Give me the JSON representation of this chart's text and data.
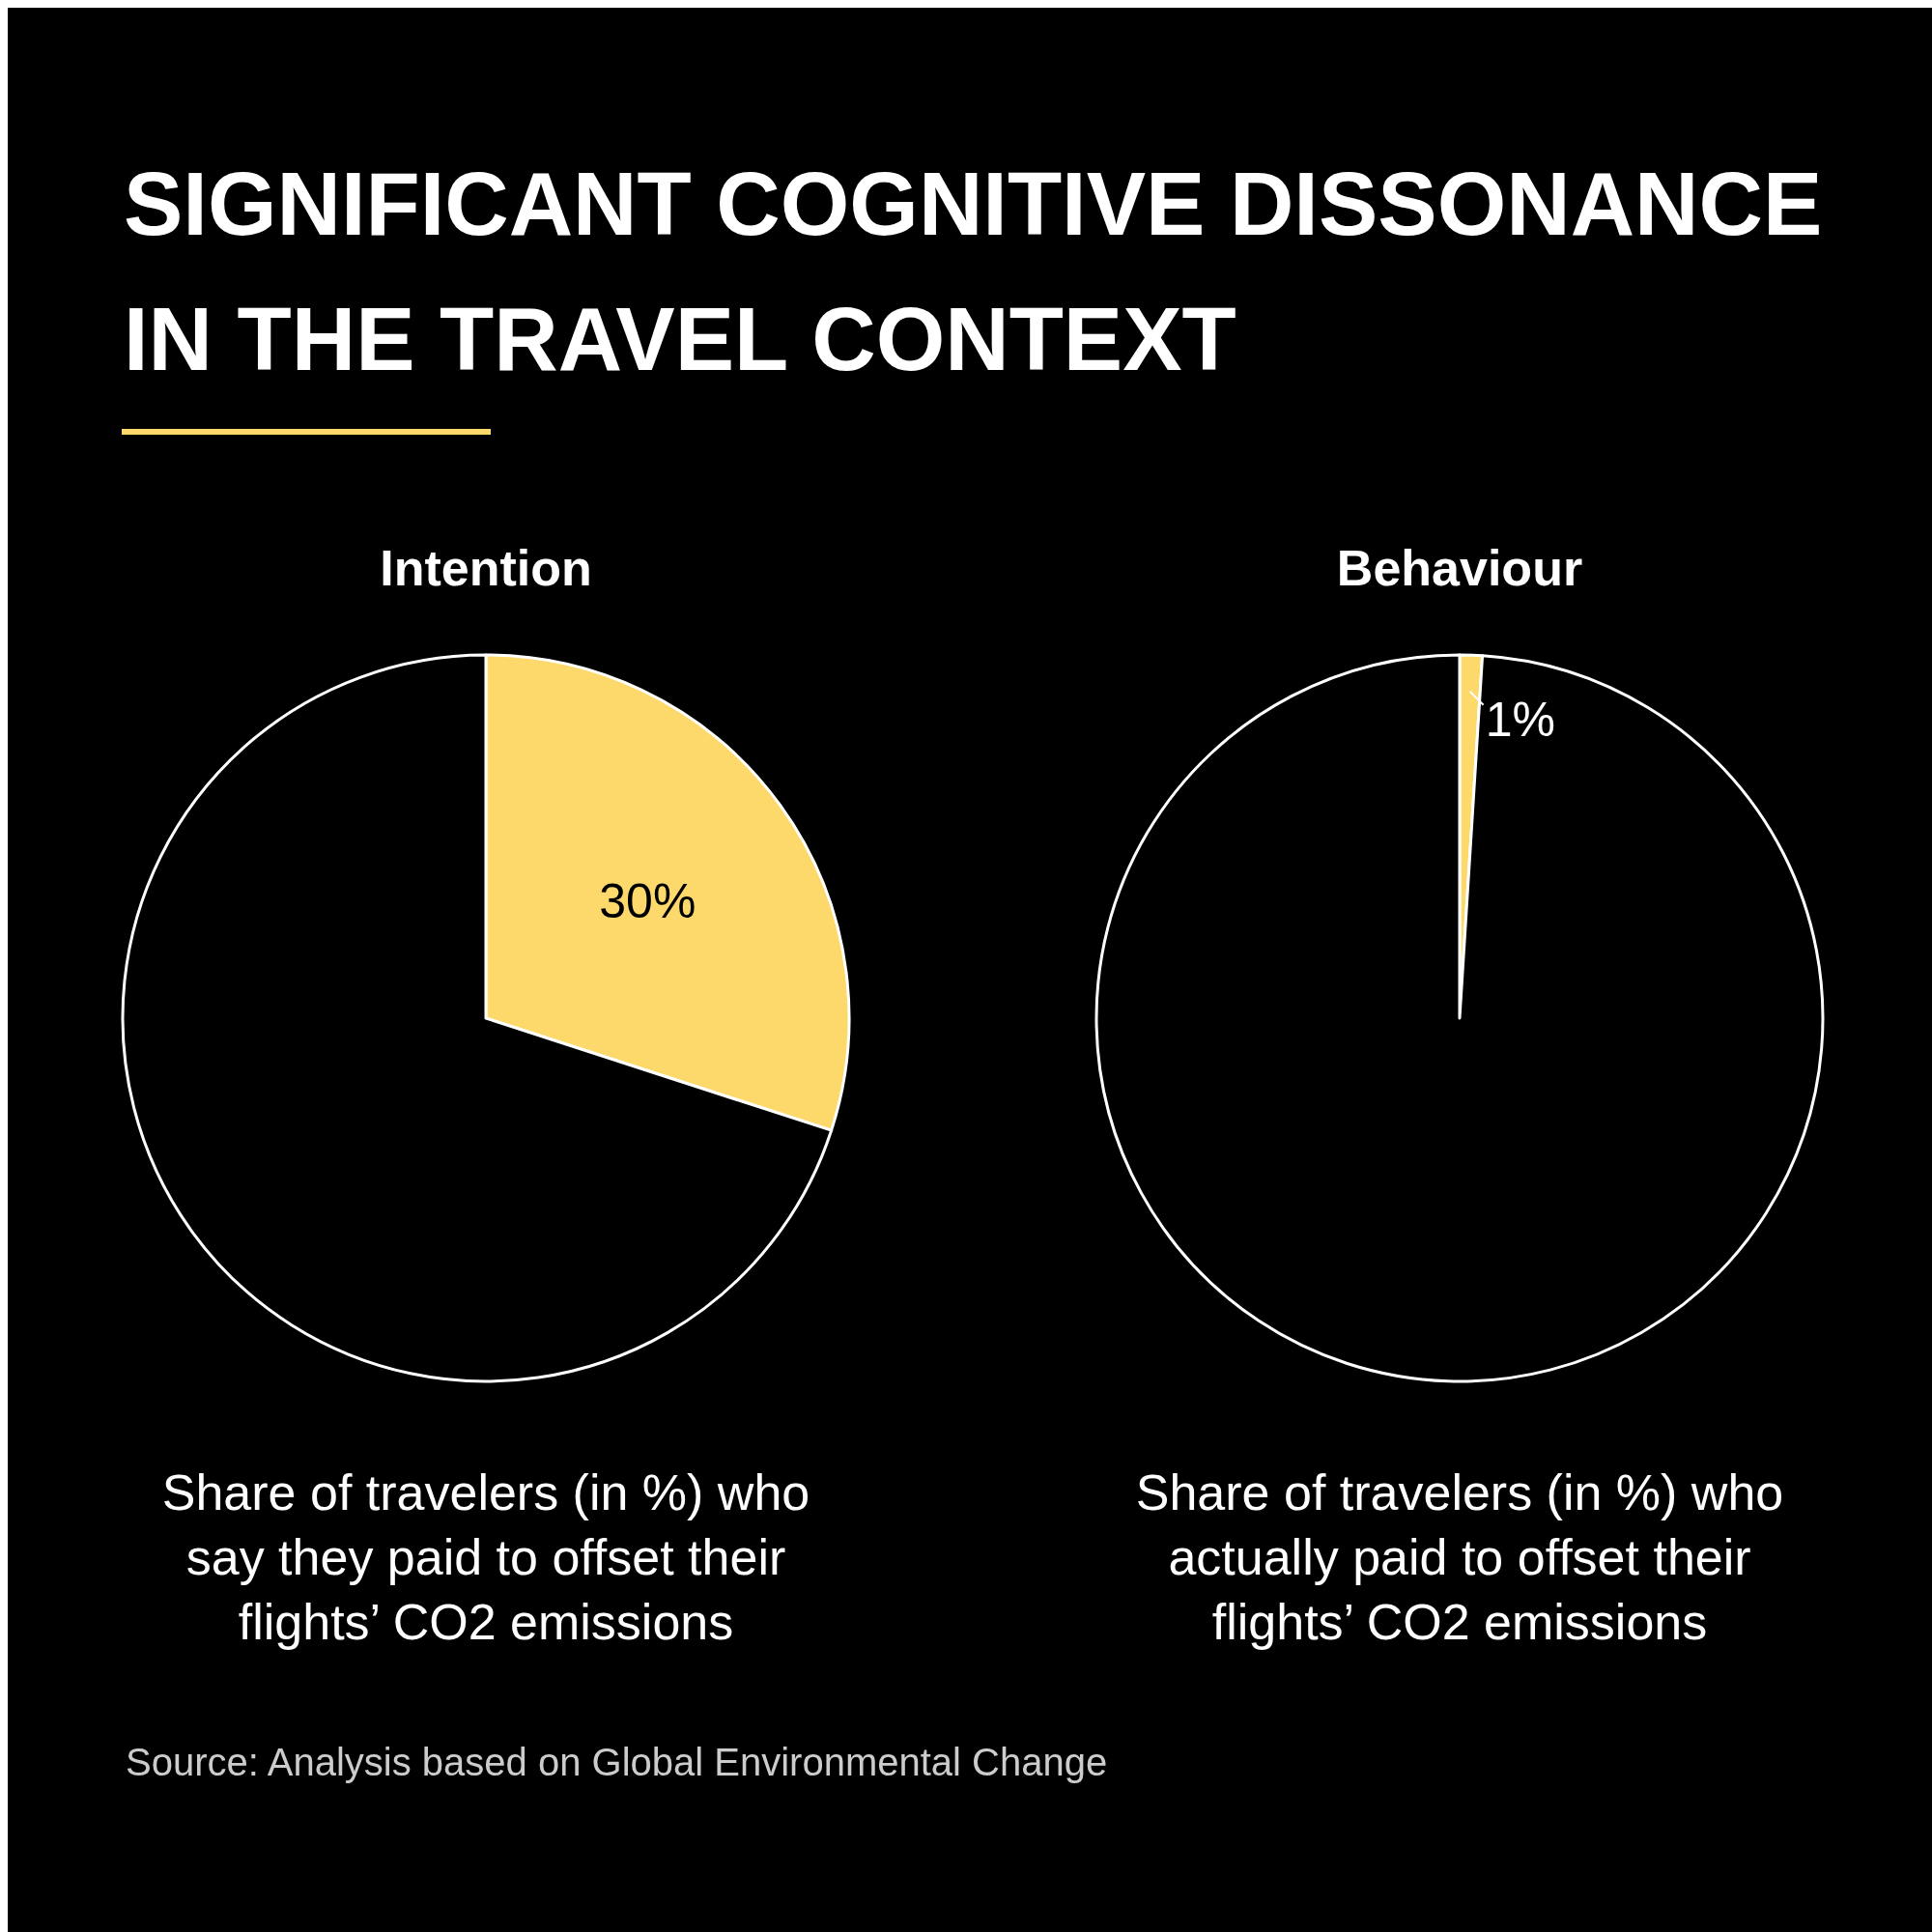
{
  "chart_data": [
    {
      "type": "other",
      "title": "SIGNIFICANT COGNITIVE DISSONANCE IN THE TRAVEL CONTEXT",
      "annotations": [
        "Source: Analysis based on Global Environmental Change"
      ]
    },
    {
      "type": "pie",
      "title": "Intention",
      "categories": [
        null,
        null
      ],
      "values": [
        30,
        70
      ],
      "colors": [
        "#fdd86b",
        "#000000"
      ],
      "value_labels": [
        "30%",
        null
      ],
      "annotations": [
        "Share of travelers (in %) who say they paid to offset their flights’ CO2 emissions"
      ]
    },
    {
      "type": "pie",
      "title": "Behaviour",
      "categories": [
        null,
        null
      ],
      "values": [
        1,
        99
      ],
      "colors": [
        "#fdd86b",
        "#000000"
      ],
      "value_labels": [
        "1%",
        null
      ],
      "annotations": [
        "Share of travelers (in %) who actually paid to offset their flights’ CO2 emissions"
      ]
    }
  ]
}
